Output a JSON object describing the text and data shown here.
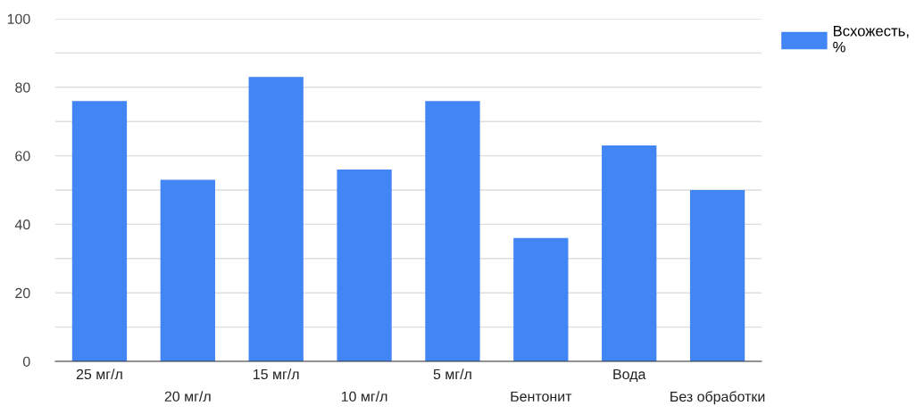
{
  "chart_data": {
    "type": "bar",
    "categories": [
      "25 мг/л",
      "20 мг/л",
      "15 мг/л",
      "10 мг/л",
      "5 мг/л",
      "Бентонит",
      "Вода",
      "Без обработки"
    ],
    "series": [
      {
        "name": "Всхожесть, %",
        "color": "#4285f4",
        "values": [
          76,
          53,
          83,
          56,
          76,
          36,
          63,
          50
        ]
      }
    ],
    "ylim": [
      0,
      100
    ],
    "yticks": [
      0,
      {
        "value": 10,
        "label": null
      },
      20,
      {
        "value": 30,
        "label": null
      },
      40,
      {
        "value": 50,
        "label": null
      },
      60,
      {
        "value": 70,
        "label": null
      },
      80,
      {
        "value": 90,
        "label": null
      },
      100
    ],
    "grid": "y",
    "legend": "top right"
  }
}
